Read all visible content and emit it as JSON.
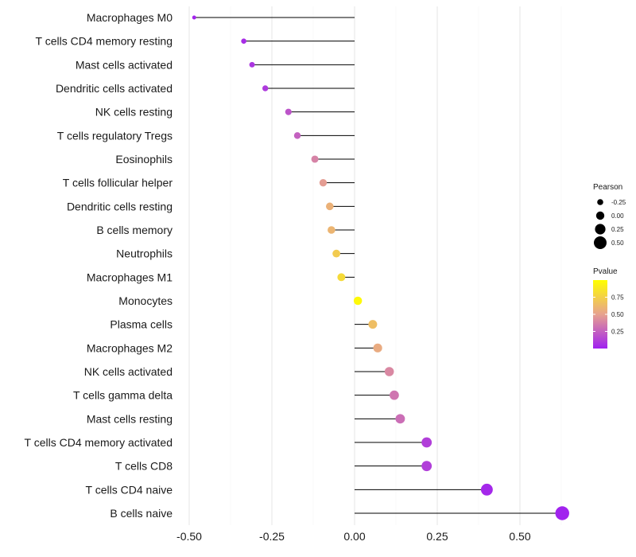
{
  "chart_data": {
    "type": "lollipop",
    "categories": [
      "Macrophages M0",
      "T cells CD4 memory resting",
      "Mast cells activated",
      "Dendritic cells activated",
      "NK cells resting",
      "T cells regulatory  Tregs ",
      "Eosinophils",
      "T cells follicular helper",
      "Dendritic cells resting",
      "B cells memory",
      "Neutrophils",
      "Macrophages M1",
      "Monocytes",
      "Plasma cells",
      "Macrophages M2",
      "NK cells activated",
      "T cells gamma delta",
      "Mast cells resting",
      "T cells CD4 memory activated",
      "T cells CD8",
      "T cells CD4 naive",
      "B cells naive"
    ],
    "values": [
      -0.485,
      -0.335,
      -0.31,
      -0.27,
      -0.2,
      -0.173,
      -0.12,
      -0.095,
      -0.075,
      -0.07,
      -0.055,
      -0.04,
      0.01,
      0.055,
      0.07,
      0.105,
      0.12,
      0.138,
      0.218,
      0.218,
      0.4,
      0.628
    ],
    "pvalues": [
      0.02,
      0.05,
      0.08,
      0.1,
      0.2,
      0.25,
      0.38,
      0.48,
      0.58,
      0.6,
      0.72,
      0.8,
      0.97,
      0.65,
      0.55,
      0.4,
      0.33,
      0.3,
      0.12,
      0.12,
      0.03,
      0.01
    ],
    "xlim": [
      -0.5,
      0.75
    ],
    "xticks": [
      -0.5,
      -0.25,
      0.0,
      0.25,
      0.5
    ],
    "xtick_labels": [
      "-0.50",
      "-0.25",
      "0.00",
      "0.25",
      "0.50"
    ],
    "legend": {
      "size_title": "Pearson",
      "size_values": [
        -0.25,
        0.0,
        0.25,
        0.5
      ],
      "size_labels": [
        "-0.25",
        "0.00",
        "0.25",
        "0.50"
      ],
      "color_title": "Pvalue",
      "color_values": [
        0.75,
        0.5,
        0.25
      ],
      "color_labels": [
        "0.75",
        "0.50",
        "0.25"
      ],
      "color_range": [
        0.0,
        1.0
      ],
      "color_low": "#a020f0",
      "color_mid": "#e7a28f",
      "color_high": "#ffff00",
      "placement": "right"
    },
    "grid": true
  }
}
